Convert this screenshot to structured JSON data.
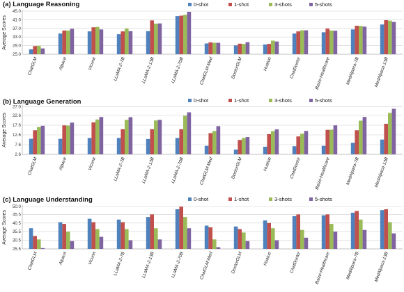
{
  "colors": [
    "#4f81bd",
    "#c0504d",
    "#9bbb59",
    "#8064a2"
  ],
  "chart_data": [
    {
      "type": "bar",
      "title": "(a) Language Reasoning",
      "ylabel": "Average Scores",
      "yticks": [
        "25.0",
        "29.0",
        "33.0",
        "37.0",
        "41.0",
        "45.0"
      ],
      "ylim": [
        25,
        45
      ],
      "legend": "top-right",
      "grid": true,
      "categories": [
        "ChatGLM",
        "Alpaca",
        "Vicuna",
        "LLaMA-2-7B",
        "LLaMA-2-13B",
        "LLaMA-2-70B",
        "ChatGLM-Med",
        "DoctorGLM",
        "Huatuo",
        "ChatDoctor",
        "Baize-Healthcare",
        "MedAlpaca-7B",
        "MedAlpaca-13B"
      ],
      "series": [
        {
          "name": "0-shot",
          "values": [
            27.3,
            34.6,
            35.6,
            34.3,
            35.7,
            42.7,
            30.0,
            29.1,
            29.5,
            34.6,
            35.2,
            36.5,
            38.8
          ]
        },
        {
          "name": "1-shot",
          "values": [
            28.8,
            36.0,
            37.5,
            35.6,
            40.7,
            42.9,
            30.5,
            29.9,
            29.8,
            35.6,
            36.9,
            38.2,
            40.8
          ]
        },
        {
          "name": "3-shots",
          "values": [
            28.9,
            36.0,
            37.7,
            36.9,
            39.2,
            43.3,
            30.3,
            29.8,
            31.3,
            36.1,
            36.0,
            38.1,
            40.6
          ]
        },
        {
          "name": "5-shots",
          "values": [
            27.7,
            36.8,
            36.5,
            35.7,
            39.3,
            44.7,
            30.3,
            30.6,
            30.9,
            36.1,
            35.9,
            37.8,
            40.0
          ]
        }
      ]
    },
    {
      "type": "bar",
      "title": "(b) Language Generation",
      "ylabel": "Average Scores",
      "yticks": [
        "2.6",
        "7.6",
        "12.6",
        "17.6",
        "22.6",
        "27.0"
      ],
      "ylim": [
        2.6,
        27.6
      ],
      "legend": "top-right",
      "grid": true,
      "categories": [
        "ChatGLM",
        "Alpaca",
        "Vicuna",
        "LLaMA-2-7B",
        "LLaMA-2-13B",
        "LLaMA-2-70B",
        "ChatGLM-Med",
        "DoctorGLM",
        "Huatuo",
        "ChatDoctor",
        "Baize-Healthcare",
        "MedAlpaca-7B",
        "MedAlpaca-13B"
      ],
      "series": [
        {
          "name": "0-shot",
          "values": [
            10.6,
            10.6,
            11.0,
            11.0,
            10.5,
            11.0,
            7.0,
            5.0,
            6.5,
            6.8,
            7.0,
            8.5,
            10.2
          ]
        },
        {
          "name": "1-shot",
          "values": [
            15.0,
            17.5,
            19.0,
            15.5,
            15.5,
            15.5,
            13.5,
            10.0,
            13.0,
            11.8,
            15.2,
            15.0,
            18.3
          ]
        },
        {
          "name": "3-shots",
          "values": [
            16.6,
            17.4,
            20.5,
            20.3,
            20.0,
            22.5,
            14.6,
            11.0,
            14.5,
            13.2,
            15.3,
            19.9,
            23.9
          ]
        },
        {
          "name": "5-shots",
          "values": [
            17.3,
            18.9,
            21.8,
            21.7,
            20.3,
            24.2,
            17.1,
            11.5,
            15.4,
            14.6,
            17.5,
            21.8,
            26.0
          ]
        }
      ]
    },
    {
      "type": "bar",
      "title": "(c) Language Understanding",
      "ylabel": "Average Scores",
      "yticks": [
        "25.5",
        "30.5",
        "35.5",
        "40.5",
        "45.5",
        "50.0"
      ],
      "ylim": [
        25.5,
        50.5
      ],
      "legend": "top-right",
      "grid": true,
      "categories": [
        "ChatGLM",
        "Alpaca",
        "Vicuna",
        "LLaMA-2-7B",
        "LLaMA-2-13B",
        "LLaMA-2-70B",
        "ChatGLM-Med",
        "DoctorGLM",
        "Huatuo",
        "ChatDoctor",
        "Baize-Healthcare",
        "MedAlpaca-7B",
        "MedAlpaca-13B"
      ],
      "series": [
        {
          "name": "0-shot",
          "values": [
            37.5,
            41.0,
            43.0,
            42.5,
            44.0,
            48.5,
            39.0,
            38.5,
            42.0,
            44.5,
            45.0,
            46.5,
            48.0
          ]
        },
        {
          "name": "1-shot",
          "values": [
            33.0,
            40.0,
            41.0,
            41.0,
            45.5,
            50.0,
            38.0,
            37.0,
            40.5,
            45.5,
            45.5,
            47.5,
            48.5
          ]
        },
        {
          "name": "3-shots",
          "values": [
            31.0,
            35.5,
            37.0,
            37.0,
            37.5,
            44.0,
            31.0,
            35.0,
            37.5,
            36.5,
            40.0,
            42.5,
            41.0
          ]
        },
        {
          "name": "5-shots",
          "values": [
            26.0,
            30.0,
            32.5,
            30.5,
            31.0,
            37.5,
            26.5,
            30.0,
            30.5,
            32.0,
            35.5,
            36.5,
            34.5
          ]
        }
      ]
    }
  ]
}
